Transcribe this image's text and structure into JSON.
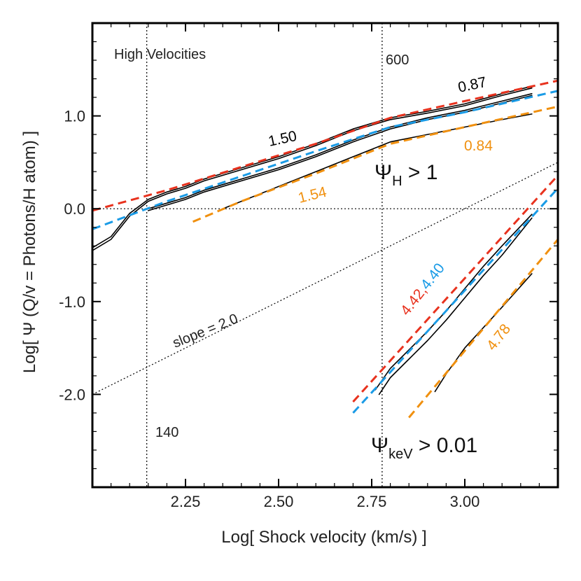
{
  "chart_data": {
    "type": "line",
    "title": "",
    "xlabel": "Log[ Shock velocity (km/s) ]",
    "ylabel": "Log[ Ψ (Q/v = Photons/H atom) ]",
    "xlim": [
      2.0,
      3.25
    ],
    "ylim": [
      -3.0,
      2.0
    ],
    "xticks": [
      2.25,
      2.5,
      2.75,
      3.0
    ],
    "xtick_labels": [
      "2.25",
      "2.50",
      "2.75",
      "3.00"
    ],
    "yticks": [
      1.0,
      0.0,
      -1.0,
      -2.0
    ],
    "ytick_labels": [
      "1.0",
      "0.0",
      "-1.0",
      "-2.0"
    ],
    "colors": {
      "red": "#e8321e",
      "blue": "#1a9be6",
      "orange": "#f0900f",
      "black": "#000000"
    },
    "annotations": {
      "corner": "High Velocities",
      "v600": "600",
      "v140": "140",
      "slope": "slope = 2.0",
      "psi_h_symbol": "Ψ",
      "psi_h_sub": "H",
      "psi_h_cond": " > 1",
      "psi_kev_symbol": "Ψ",
      "psi_kev_sub": "keV",
      "psi_kev_cond": " > 0.01"
    },
    "slope_labels": {
      "black_upper": "0.87",
      "black_mid": "1.50",
      "orange_upper_right": "0.84",
      "orange_upper_left": "1.54",
      "red_lower": "4.42,",
      "blue_lower": "4.40",
      "orange_lower": "4.78"
    },
    "reference_lines": {
      "vertical_x": [
        2.146,
        2.778
      ],
      "horizontal_y": 0.0,
      "slope_line": {
        "slope": 2.0,
        "x": [
          2.0,
          3.25
        ],
        "y": [
          -2.0,
          0.5
        ]
      }
    },
    "series": [
      {
        "name": "psi_H_total_a",
        "color": "#000000",
        "style": "solid",
        "x": [
          2.0,
          2.05,
          2.1,
          2.15,
          2.2,
          2.25,
          2.3,
          2.4,
          2.5,
          2.6,
          2.7,
          2.8,
          2.9,
          3.0,
          3.1,
          3.18
        ],
        "y": [
          -0.42,
          -0.3,
          -0.05,
          0.1,
          0.18,
          0.24,
          0.32,
          0.44,
          0.56,
          0.7,
          0.86,
          0.98,
          1.05,
          1.13,
          1.24,
          1.32
        ]
      },
      {
        "name": "psi_H_total_b",
        "color": "#000000",
        "style": "solid",
        "x": [
          2.0,
          2.05,
          2.1,
          2.15,
          2.2,
          2.25,
          2.3,
          2.4,
          2.5,
          2.6,
          2.7,
          2.8,
          2.9,
          3.0,
          3.1,
          3.18
        ],
        "y": [
          -0.45,
          -0.33,
          -0.08,
          0.08,
          0.16,
          0.22,
          0.3,
          0.42,
          0.54,
          0.68,
          0.84,
          0.96,
          1.03,
          1.11,
          1.22,
          1.3
        ]
      },
      {
        "name": "psi_H_mid_a",
        "color": "#000000",
        "style": "solid",
        "x": [
          2.15,
          2.2,
          2.25,
          2.3,
          2.4,
          2.5,
          2.6,
          2.7,
          2.8,
          2.9,
          3.0,
          3.1,
          3.18
        ],
        "y": [
          0.0,
          0.06,
          0.12,
          0.2,
          0.32,
          0.44,
          0.58,
          0.74,
          0.88,
          0.98,
          1.06,
          1.16,
          1.24
        ]
      },
      {
        "name": "psi_H_mid_b",
        "color": "#000000",
        "style": "solid",
        "x": [
          2.15,
          2.2,
          2.25,
          2.3,
          2.4,
          2.5,
          2.6,
          2.7,
          2.8,
          2.9,
          3.0,
          3.1,
          3.18
        ],
        "y": [
          -0.02,
          0.04,
          0.1,
          0.18,
          0.3,
          0.42,
          0.56,
          0.72,
          0.86,
          0.96,
          1.04,
          1.14,
          1.22
        ]
      },
      {
        "name": "psi_H_low",
        "color": "#000000",
        "style": "solid",
        "x": [
          2.35,
          2.4,
          2.5,
          2.6,
          2.7,
          2.8,
          2.9,
          3.0,
          3.1,
          3.18
        ],
        "y": [
          0.0,
          0.08,
          0.24,
          0.4,
          0.56,
          0.72,
          0.8,
          0.88,
          0.96,
          1.02
        ]
      },
      {
        "name": "psi_H_fit_red",
        "color": "#e8321e",
        "style": "dashed",
        "x": [
          2.0,
          2.2,
          2.4,
          2.6,
          2.8,
          3.0,
          3.25
        ],
        "y": [
          -0.02,
          0.2,
          0.45,
          0.7,
          0.98,
          1.16,
          1.38
        ]
      },
      {
        "name": "psi_H_fit_blue",
        "color": "#1a9be6",
        "style": "dashed",
        "x": [
          2.0,
          2.2,
          2.4,
          2.6,
          2.8,
          3.0,
          3.25
        ],
        "y": [
          -0.22,
          0.08,
          0.35,
          0.62,
          0.88,
          1.04,
          1.27
        ]
      },
      {
        "name": "psi_H_fit_orange",
        "color": "#f0900f",
        "style": "dashed",
        "x": [
          2.27,
          2.4,
          2.6,
          2.8,
          3.0,
          3.25
        ],
        "y": [
          -0.14,
          0.08,
          0.38,
          0.7,
          0.88,
          1.1
        ]
      },
      {
        "name": "psi_keV_a",
        "color": "#000000",
        "style": "solid",
        "x": [
          2.76,
          2.8,
          2.85,
          2.9,
          2.95,
          3.0,
          3.05,
          3.1,
          3.18
        ],
        "y": [
          -1.95,
          -1.72,
          -1.52,
          -1.32,
          -1.1,
          -0.86,
          -0.62,
          -0.4,
          -0.06
        ]
      },
      {
        "name": "psi_keV_b",
        "color": "#000000",
        "style": "solid",
        "x": [
          2.77,
          2.8,
          2.85,
          2.9,
          2.95,
          3.0,
          3.05,
          3.1,
          3.18
        ],
        "y": [
          -2.0,
          -1.82,
          -1.62,
          -1.42,
          -1.2,
          -0.96,
          -0.72,
          -0.5,
          -0.1
        ]
      },
      {
        "name": "psi_keV_low",
        "color": "#000000",
        "style": "solid",
        "x": [
          2.92,
          2.95,
          3.0,
          3.05,
          3.1,
          3.18
        ],
        "y": [
          -1.97,
          -1.78,
          -1.5,
          -1.28,
          -1.06,
          -0.7
        ]
      },
      {
        "name": "psi_keV_fit_red",
        "color": "#e8321e",
        "style": "dashed",
        "x": [
          2.7,
          3.25
        ],
        "y": [
          -2.08,
          0.36
        ]
      },
      {
        "name": "psi_keV_fit_blue",
        "color": "#1a9be6",
        "style": "dashed",
        "x": [
          2.7,
          3.25
        ],
        "y": [
          -2.2,
          0.22
        ]
      },
      {
        "name": "psi_keV_fit_orange",
        "color": "#f0900f",
        "style": "dashed",
        "x": [
          2.85,
          3.25
        ],
        "y": [
          -2.25,
          -0.33
        ]
      }
    ]
  }
}
